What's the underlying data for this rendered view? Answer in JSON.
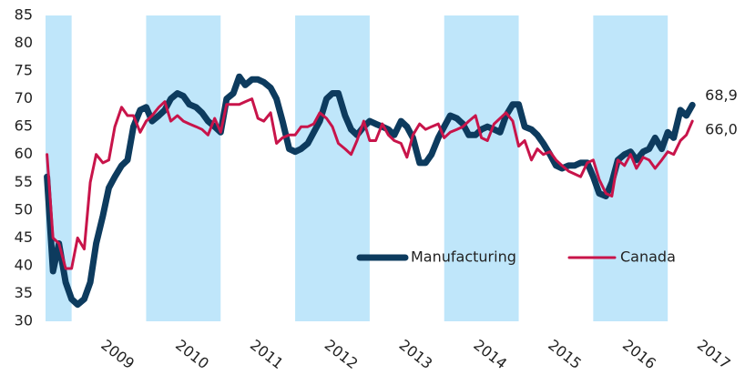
{
  "chart_data": {
    "type": "line",
    "x": [
      2008.67,
      2008.75,
      2008.83,
      2008.92,
      2009.0,
      2009.08,
      2009.17,
      2009.25,
      2009.33,
      2009.42,
      2009.5,
      2009.58,
      2009.67,
      2009.75,
      2009.83,
      2009.92,
      2010.0,
      2010.08,
      2010.17,
      2010.25,
      2010.33,
      2010.42,
      2010.5,
      2010.58,
      2010.67,
      2010.75,
      2010.83,
      2010.92,
      2011.0,
      2011.08,
      2011.17,
      2011.25,
      2011.33,
      2011.42,
      2011.5,
      2011.58,
      2011.67,
      2011.75,
      2011.83,
      2011.92,
      2012.0,
      2012.08,
      2012.17,
      2012.25,
      2012.33,
      2012.42,
      2012.5,
      2012.58,
      2012.67,
      2012.75,
      2012.83,
      2012.92,
      2013.0,
      2013.08,
      2013.17,
      2013.25,
      2013.33,
      2013.42,
      2013.5,
      2013.58,
      2013.67,
      2013.75,
      2013.83,
      2013.92,
      2014.0,
      2014.08,
      2014.17,
      2014.25,
      2014.33,
      2014.42,
      2014.5,
      2014.58,
      2014.67,
      2014.75,
      2014.83,
      2014.92,
      2015.0,
      2015.08,
      2015.17,
      2015.25,
      2015.33,
      2015.42,
      2015.5,
      2015.58,
      2015.67,
      2015.75,
      2015.83,
      2015.92,
      2016.0,
      2016.08,
      2016.17,
      2016.25,
      2016.33,
      2016.42,
      2016.5,
      2016.58,
      2016.67,
      2016.75,
      2016.83,
      2016.92,
      2017.0,
      2017.08,
      2017.17,
      2017.25,
      2017.33
    ],
    "series": [
      {
        "name": "Manufacturing",
        "color": "#0d3b5e",
        "last_label": "68,9",
        "values": [
          56,
          39,
          44,
          37,
          34,
          33,
          34,
          37,
          44,
          49,
          54,
          56,
          58,
          59,
          65,
          68,
          68.5,
          66,
          67,
          68,
          70,
          71,
          70.5,
          69,
          68.5,
          67.5,
          66,
          65,
          64,
          70,
          71,
          74,
          72.5,
          73.5,
          73.5,
          73,
          72,
          70,
          66,
          61,
          60.5,
          61,
          62,
          64,
          66,
          70,
          71,
          71,
          67,
          64.5,
          63.5,
          65,
          66,
          65.5,
          65,
          64.5,
          63.5,
          66,
          65,
          63,
          58.5,
          58.5,
          60,
          63,
          65,
          67,
          66.5,
          65.5,
          63.5,
          63.5,
          64.5,
          65,
          64.5,
          64,
          67,
          69,
          69,
          65,
          64.5,
          63.5,
          62,
          60,
          58,
          57.5,
          58,
          58,
          58.5,
          58.5,
          56,
          53,
          52.5,
          55,
          59,
          60,
          60.5,
          59,
          60.5,
          61,
          63,
          61,
          64,
          63,
          68,
          67,
          68.9
        ]
      },
      {
        "name": "Canada",
        "color": "#c8144a",
        "last_label": "66,0",
        "values": [
          60,
          45,
          44,
          39.5,
          39.5,
          45,
          43,
          55,
          60,
          58.5,
          59,
          65,
          68.5,
          67,
          67,
          64,
          66,
          67,
          68.5,
          69.5,
          66,
          67,
          66,
          65.5,
          65,
          64.5,
          63.5,
          66.5,
          64,
          69,
          69,
          69,
          69.5,
          70,
          66.5,
          66,
          67.5,
          62,
          63,
          63.5,
          63.5,
          65,
          65,
          65.5,
          67.5,
          66.5,
          65,
          62,
          61,
          60,
          62.5,
          66,
          62.5,
          62.5,
          65.5,
          63.5,
          62.5,
          62,
          59.5,
          63.5,
          65.5,
          64.5,
          65,
          65.5,
          63,
          64,
          64.5,
          65,
          66,
          67,
          63,
          62.5,
          65.5,
          66.5,
          67.5,
          66,
          61.5,
          62.5,
          59,
          61,
          60,
          60.5,
          59,
          58,
          57,
          56.5,
          56,
          58.5,
          59,
          55.5,
          53,
          52.5,
          59,
          58,
          60,
          57.5,
          59.5,
          59,
          57.5,
          59,
          60.5,
          60,
          62.5,
          63.5,
          66
        ]
      }
    ],
    "xlim": [
      2008.65,
      2018.0
    ],
    "xticks": [
      2009,
      2010,
      2011,
      2012,
      2013,
      2014,
      2015,
      2016,
      2017
    ],
    "ylim": [
      30,
      85
    ],
    "yticks": [
      30,
      35,
      40,
      45,
      50,
      55,
      60,
      65,
      70,
      75,
      80,
      85
    ],
    "shaded_years": [
      2008,
      2010,
      2012,
      2014,
      2016
    ],
    "shade_color": "#bfe6fa",
    "legend": "lower right",
    "grid": false
  }
}
